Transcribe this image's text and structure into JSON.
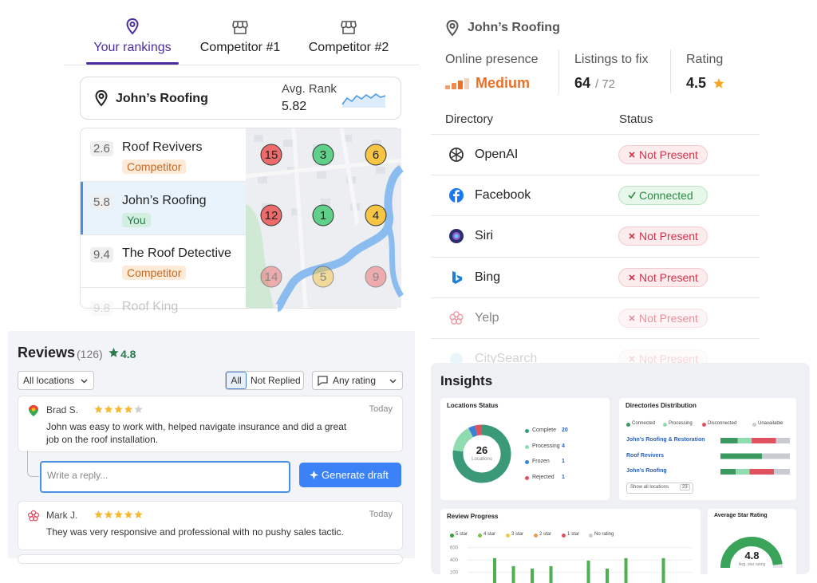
{
  "rankings": {
    "tabs": [
      "Your rankings",
      "Competitor #1",
      "Competitor #2"
    ],
    "business": "John’s Roofing",
    "avg_rank_label": "Avg. Rank",
    "avg_rank": 5.82,
    "list": [
      {
        "rank": 2.6,
        "name": "Roof Revivers",
        "tag": "Competitor"
      },
      {
        "rank": 5.8,
        "name": "John’s Roofing",
        "tag": "You"
      },
      {
        "rank": 9.4,
        "name": "The Roof Detective",
        "tag": "Competitor"
      },
      {
        "rank": 9.8,
        "name": "Roof King"
      }
    ],
    "map_pins": [
      [
        15,
        3,
        6
      ],
      [
        12,
        1,
        4
      ],
      [
        14,
        5,
        9
      ]
    ],
    "map_pin_colors": [
      [
        "#ee6b6b",
        "#5fcf8a",
        "#f5c543"
      ],
      [
        "#ee6b6b",
        "#5fcf8a",
        "#f5c543"
      ],
      [
        "#ee6b6b",
        "#f5c543",
        "#ee6b6b"
      ]
    ]
  },
  "listings": {
    "business": "John’s Roofing",
    "presence_label": "Online presence",
    "presence": "Medium",
    "fix_label": "Listings to fix",
    "fix": 64,
    "fix_total": "/ 72",
    "rating_label": "Rating",
    "rating": 4.5,
    "columns": [
      "Directory",
      "Status"
    ],
    "rows": [
      {
        "directory": "OpenAI",
        "status": "Not Present"
      },
      {
        "directory": "Facebook",
        "status": "Connected"
      },
      {
        "directory": "Siri",
        "status": "Not Present"
      },
      {
        "directory": "Bing",
        "status": "Not Present"
      },
      {
        "directory": "Yelp",
        "status": "Not Present"
      },
      {
        "directory": "CitySearch",
        "status": "Not Present"
      }
    ]
  },
  "reviews": {
    "title": "Reviews",
    "count": "(126)",
    "rating": 4.8,
    "filters": {
      "location": "All locations",
      "all": "All",
      "not_replied": "Not Replied",
      "rating": "Any rating"
    },
    "items": [
      {
        "author": "Brad S.",
        "stars": 4,
        "date": "Today",
        "text": "John was easy to work with, helped navigate insurance and did a great job on the roof installation."
      },
      {
        "author": "Mark J.",
        "stars": 5,
        "date": "Today",
        "text": "They was very responsive and professional with no pushy sales tactic."
      }
    ],
    "reply_placeholder": "Write a reply...",
    "generate": "Generate draft"
  },
  "insights": {
    "title": "Insights",
    "locations_status": {
      "title": "Locations Status",
      "total": 26,
      "total_label": "Locations",
      "items": [
        {
          "name": "Complete",
          "value": 20,
          "color": "#3a9a78"
        },
        {
          "name": "Processing",
          "value": 4,
          "color": "#8fdcb0"
        },
        {
          "name": "Frozen",
          "value": 1,
          "color": "#3b82d6"
        },
        {
          "name": "Rejected",
          "value": 1,
          "color": "#e05260"
        }
      ]
    },
    "directories": {
      "title": "Directories Distribution",
      "legend": [
        {
          "name": "Connected",
          "color": "#3a9a60"
        },
        {
          "name": "Processing",
          "color": "#8fdcb0"
        },
        {
          "name": "Disconnected",
          "color": "#e05260"
        },
        {
          "name": "Unavailable",
          "color": "#c8ccd2"
        }
      ],
      "rows": [
        {
          "name": "John’s Roofing & Restoration",
          "values": [
            25,
            20,
            35,
            20
          ]
        },
        {
          "name": "Roof Revivers",
          "values": [
            60,
            0,
            0,
            40
          ]
        },
        {
          "name": "John’s Roofing",
          "values": [
            22,
            20,
            35,
            23
          ]
        }
      ],
      "show_all": "Show all locations",
      "show_all_count": 23
    },
    "review_progress": {
      "title": "Review Progress",
      "legend": [
        {
          "name": "5 star",
          "color": "#3a9a3a"
        },
        {
          "name": "4 star",
          "color": "#7cc242"
        },
        {
          "name": "3 star",
          "color": "#f2c94c"
        },
        {
          "name": "2 star",
          "color": "#f2994a"
        },
        {
          "name": "1 star",
          "color": "#e05260"
        },
        {
          "name": "No rating",
          "color": "#c8ccd2"
        }
      ],
      "ylim": [
        0,
        700
      ],
      "yticks": [
        200,
        400,
        600
      ],
      "values": [
        430,
        300,
        260,
        300,
        null,
        390,
        260,
        430,
        null,
        430
      ]
    },
    "avg_rating": {
      "title": "Average Star Rating",
      "value": 4.8,
      "label": "Avg. star rating",
      "range": [
        0,
        5
      ]
    }
  }
}
